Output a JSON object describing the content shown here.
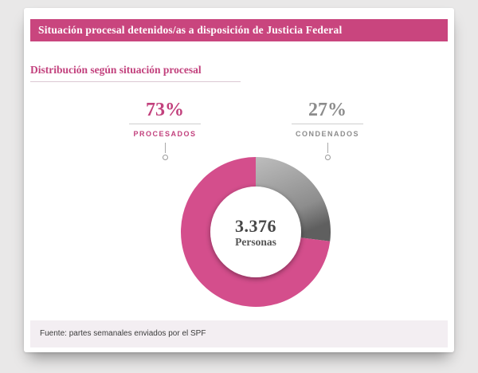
{
  "banner": {
    "title": "Situación procesal detenidos/as a disposición de Justicia Federal"
  },
  "section": {
    "title": "Distribución según situación procesal"
  },
  "chart_data": {
    "type": "pie",
    "title": "Distribución según situación procesal",
    "categories": [
      "PROCESADOS",
      "CONDENADOS"
    ],
    "values": [
      73,
      27
    ],
    "unit": "%",
    "donut": true,
    "start_angle_deg": 0,
    "direction": "clockwise",
    "center": {
      "value": "3.376",
      "label": "Personas"
    },
    "labels": [
      {
        "value": "73%",
        "name": "PROCESADOS"
      },
      {
        "value": "27%",
        "name": "CONDENADOS"
      }
    ],
    "slices": [
      {
        "label": "CONDENADOS",
        "value": 27,
        "fill": "gray"
      },
      {
        "label": "PROCESADOS",
        "value": 73,
        "fill": "pink"
      }
    ],
    "colors": {
      "pink": "#d44e8c",
      "gray_light": "#bdbdbd",
      "gray_mid": "#8d8d8d",
      "gray_dark": "#5f5f5f",
      "text_pink": "#c2417d",
      "text_gray": "#8c8c8c",
      "banner_pink": "#c9457e"
    }
  },
  "footer": {
    "source": "Fuente: partes semanales enviados por el SPF"
  }
}
